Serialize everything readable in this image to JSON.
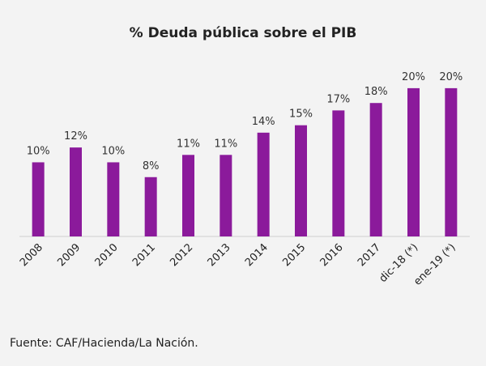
{
  "chart_data": {
    "type": "bar",
    "title": "% Deuda pública sobre el PIB",
    "categories": [
      "2008",
      "2009",
      "2010",
      "2011",
      "2012",
      "2013",
      "2014",
      "2015",
      "2016",
      "2017",
      "dic-18 (*)",
      "ene-19 (*)"
    ],
    "values": [
      10,
      12,
      10,
      8,
      11,
      11,
      14,
      15,
      17,
      18,
      20,
      20
    ],
    "data_labels": [
      "10%",
      "12%",
      "10%",
      "8%",
      "11%",
      "11%",
      "14%",
      "15%",
      "17%",
      "18%",
      "20%",
      "20%"
    ],
    "xlabel": "",
    "ylabel": "",
    "ylim": [
      0,
      21.3
    ],
    "grid": false,
    "legend": "none",
    "bar_color": "#8b1a9b",
    "axis_color": "#cfcfcf"
  },
  "source": "Fuente:  CAF/Hacienda/La Nación."
}
